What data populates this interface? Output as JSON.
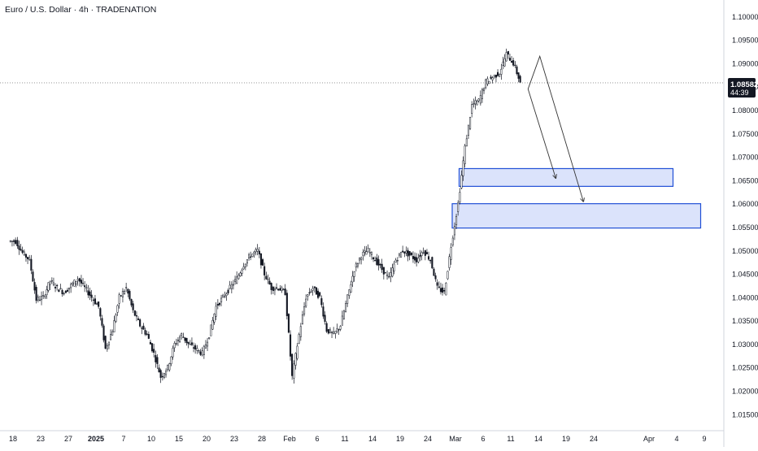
{
  "header": {
    "title": "Euro / U.S. Dollar · 4h · TRADENATION"
  },
  "price_tag": {
    "price": "1.08582",
    "countdown": "44:39"
  },
  "colors": {
    "candle": "#131722",
    "zone_fill": "#dbe3fb",
    "zone_border": "#2150d6",
    "grid_text": "#131722",
    "price_line": "#888888"
  },
  "chart_data": {
    "type": "candlestick",
    "title": "Euro / U.S. Dollar · 4h · TRADENATION",
    "ylim": [
      1.0115,
      1.103
    ],
    "y_ticks": [
      "1.10000",
      "1.09500",
      "1.09000",
      "1.08500",
      "1.08000",
      "1.07500",
      "1.07000",
      "1.06500",
      "1.06000",
      "1.05500",
      "1.05000",
      "1.04500",
      "1.04000",
      "1.03500",
      "1.03000",
      "1.02500",
      "1.02000",
      "1.01500"
    ],
    "x_ticks": [
      {
        "label": "18",
        "i": 0
      },
      {
        "label": "23",
        "i": 4
      },
      {
        "label": "27",
        "i": 8
      },
      {
        "label": "2025",
        "i": 12,
        "bold": true
      },
      {
        "label": "7",
        "i": 16
      },
      {
        "label": "10",
        "i": 20
      },
      {
        "label": "15",
        "i": 24
      },
      {
        "label": "20",
        "i": 28
      },
      {
        "label": "23",
        "i": 32
      },
      {
        "label": "28",
        "i": 36
      },
      {
        "label": "Feb",
        "i": 40
      },
      {
        "label": "6",
        "i": 44
      },
      {
        "label": "11",
        "i": 48
      },
      {
        "label": "14",
        "i": 52
      },
      {
        "label": "19",
        "i": 56
      },
      {
        "label": "24",
        "i": 60
      },
      {
        "label": "Mar",
        "i": 64
      },
      {
        "label": "6",
        "i": 68
      },
      {
        "label": "11",
        "i": 72
      },
      {
        "label": "14",
        "i": 76
      },
      {
        "label": "19",
        "i": 80
      },
      {
        "label": "24",
        "i": 84
      },
      {
        "label": "Apr",
        "i": 92
      },
      {
        "label": "4",
        "i": 96
      },
      {
        "label": "9",
        "i": 100
      }
    ],
    "closes": [
      1.052,
      1.0495,
      1.048,
      1.0395,
      1.04,
      1.0435,
      1.042,
      1.041,
      1.0425,
      1.044,
      1.042,
      1.04,
      1.038,
      1.029,
      1.033,
      1.04,
      1.042,
      1.037,
      1.034,
      1.032,
      1.028,
      1.023,
      1.025,
      1.03,
      1.032,
      1.03,
      1.029,
      1.028,
      1.032,
      1.038,
      1.04,
      1.042,
      1.044,
      1.047,
      1.049,
      1.05,
      1.045,
      1.042,
      1.042,
      1.041,
      1.023,
      1.032,
      1.04,
      1.042,
      1.04,
      1.033,
      1.032,
      1.034,
      1.04,
      1.046,
      1.049,
      1.05,
      1.048,
      1.046,
      1.044,
      1.048,
      1.05,
      1.049,
      1.048,
      1.05,
      1.048,
      1.042,
      1.041,
      1.051,
      1.06,
      1.072,
      1.081,
      1.082,
      1.086,
      1.087,
      1.088,
      1.092,
      1.09,
      1.086
    ],
    "zones": [
      {
        "x0": 65,
        "x1": 95,
        "y_top": 1.0675,
        "y_bottom": 1.0637
      },
      {
        "x0": 64,
        "x1": 99,
        "y_top": 1.06,
        "y_bottom": 1.0548
      }
    ],
    "projections": [
      {
        "points": [
          [
            74.5,
            1.0845
          ],
          [
            78.5,
            1.0655
          ]
        ]
      },
      {
        "points": [
          [
            74.5,
            1.0845
          ],
          [
            76.2,
            1.0915
          ],
          [
            82.5,
            1.0605
          ]
        ]
      }
    ],
    "last_price": 1.08582
  }
}
